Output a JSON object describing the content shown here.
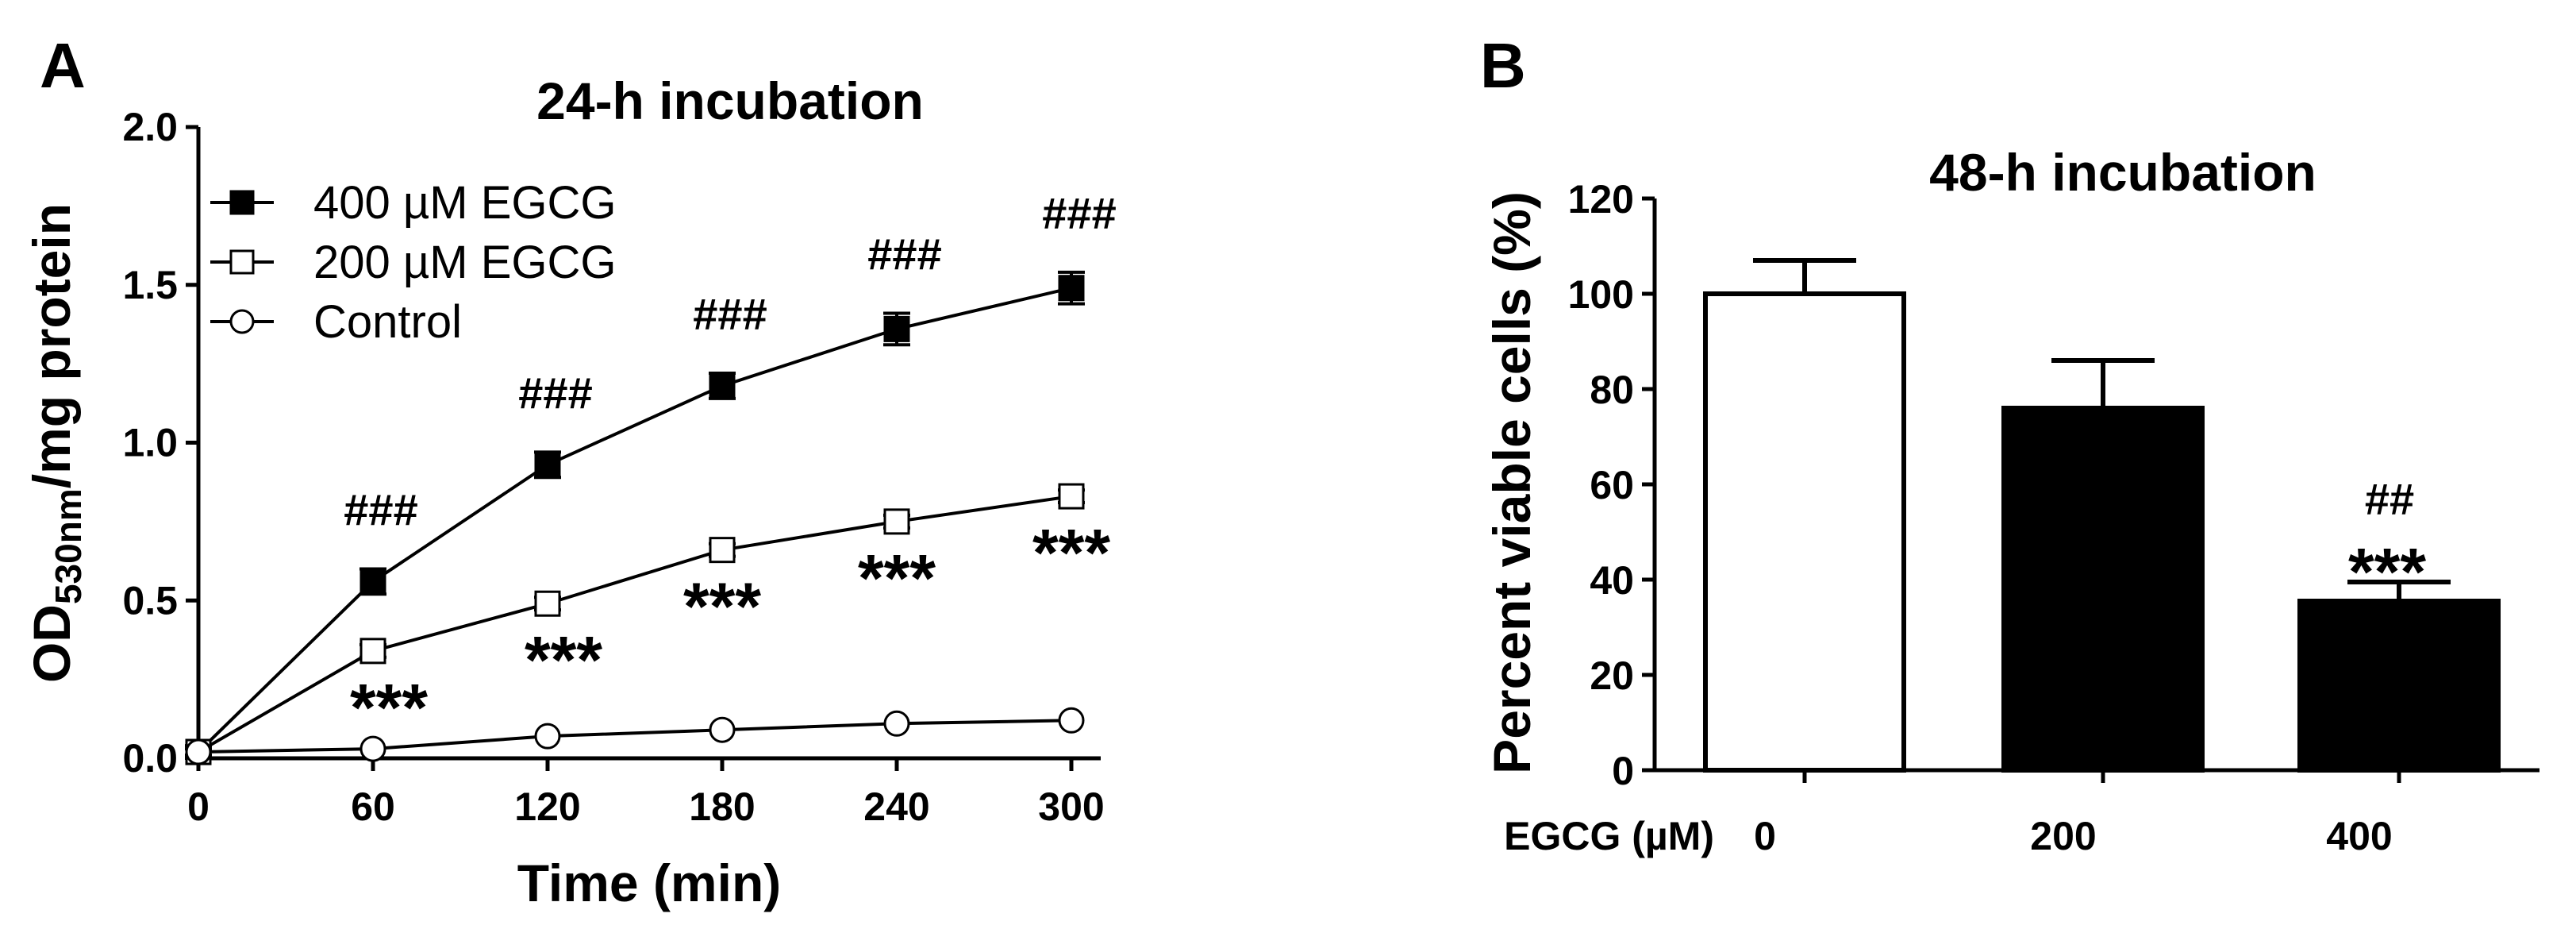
{
  "panels": {
    "a_label": "A",
    "b_label": "B"
  },
  "chart_data": [
    {
      "type": "line",
      "title": "24-h incubation",
      "xlabel": "Time (min)",
      "ylabel_main": "OD",
      "ylabel_sub": "530nm",
      "ylabel_rest": "/mg protein",
      "x": [
        0,
        60,
        120,
        180,
        240,
        300
      ],
      "xlim": [
        0,
        300
      ],
      "ylim": [
        0,
        2.0
      ],
      "xticks": [
        "0",
        "60",
        "120",
        "180",
        "240",
        "300"
      ],
      "yticks": [
        "0.0",
        "0.5",
        "1.0",
        "1.5",
        "2.0"
      ],
      "legend_position": "top-left",
      "series": [
        {
          "name": "400 µM EGCG",
          "marker": "filled-square",
          "values": [
            0.02,
            0.56,
            0.93,
            1.18,
            1.36,
            1.49
          ],
          "errors": [
            0.02,
            0.04,
            0.04,
            0.04,
            0.05,
            0.05
          ]
        },
        {
          "name": "200 µM EGCG",
          "marker": "open-square",
          "values": [
            0.02,
            0.34,
            0.49,
            0.66,
            0.75,
            0.83
          ],
          "errors": [
            0.01,
            0.02,
            0.02,
            0.02,
            0.02,
            0.02
          ]
        },
        {
          "name": "Control",
          "marker": "open-circle",
          "values": [
            0.02,
            0.03,
            0.07,
            0.09,
            0.11,
            0.12
          ],
          "errors": [
            0.0,
            0.0,
            0.0,
            0.0,
            0.0,
            0.0
          ]
        }
      ],
      "annotations": [
        {
          "x": 60,
          "text": "###"
        },
        {
          "x": 120,
          "text": "###"
        },
        {
          "x": 180,
          "text": "###"
        },
        {
          "x": 240,
          "text": "###"
        },
        {
          "x": 300,
          "text": "###"
        },
        {
          "x": 60,
          "text": "***"
        },
        {
          "x": 120,
          "text": "***"
        },
        {
          "x": 180,
          "text": "***"
        },
        {
          "x": 240,
          "text": "***"
        },
        {
          "x": 300,
          "text": "***"
        }
      ]
    },
    {
      "type": "bar",
      "title": "48-h incubation",
      "ylabel": "Percent viable cells (%)",
      "xlabel_prefix": "EGCG (µM)",
      "categories": [
        "0",
        "200",
        "400"
      ],
      "values": [
        100,
        76,
        35.5
      ],
      "errors": [
        7,
        10,
        4
      ],
      "fills": [
        "#ffffff",
        "#000000",
        "#000000"
      ],
      "ylim": [
        0,
        120
      ],
      "yticks": [
        "0",
        "20",
        "40",
        "60",
        "80",
        "100",
        "120"
      ],
      "annotations": [
        {
          "category": "400",
          "text": "##"
        },
        {
          "category": "400",
          "text": "***"
        }
      ]
    }
  ]
}
